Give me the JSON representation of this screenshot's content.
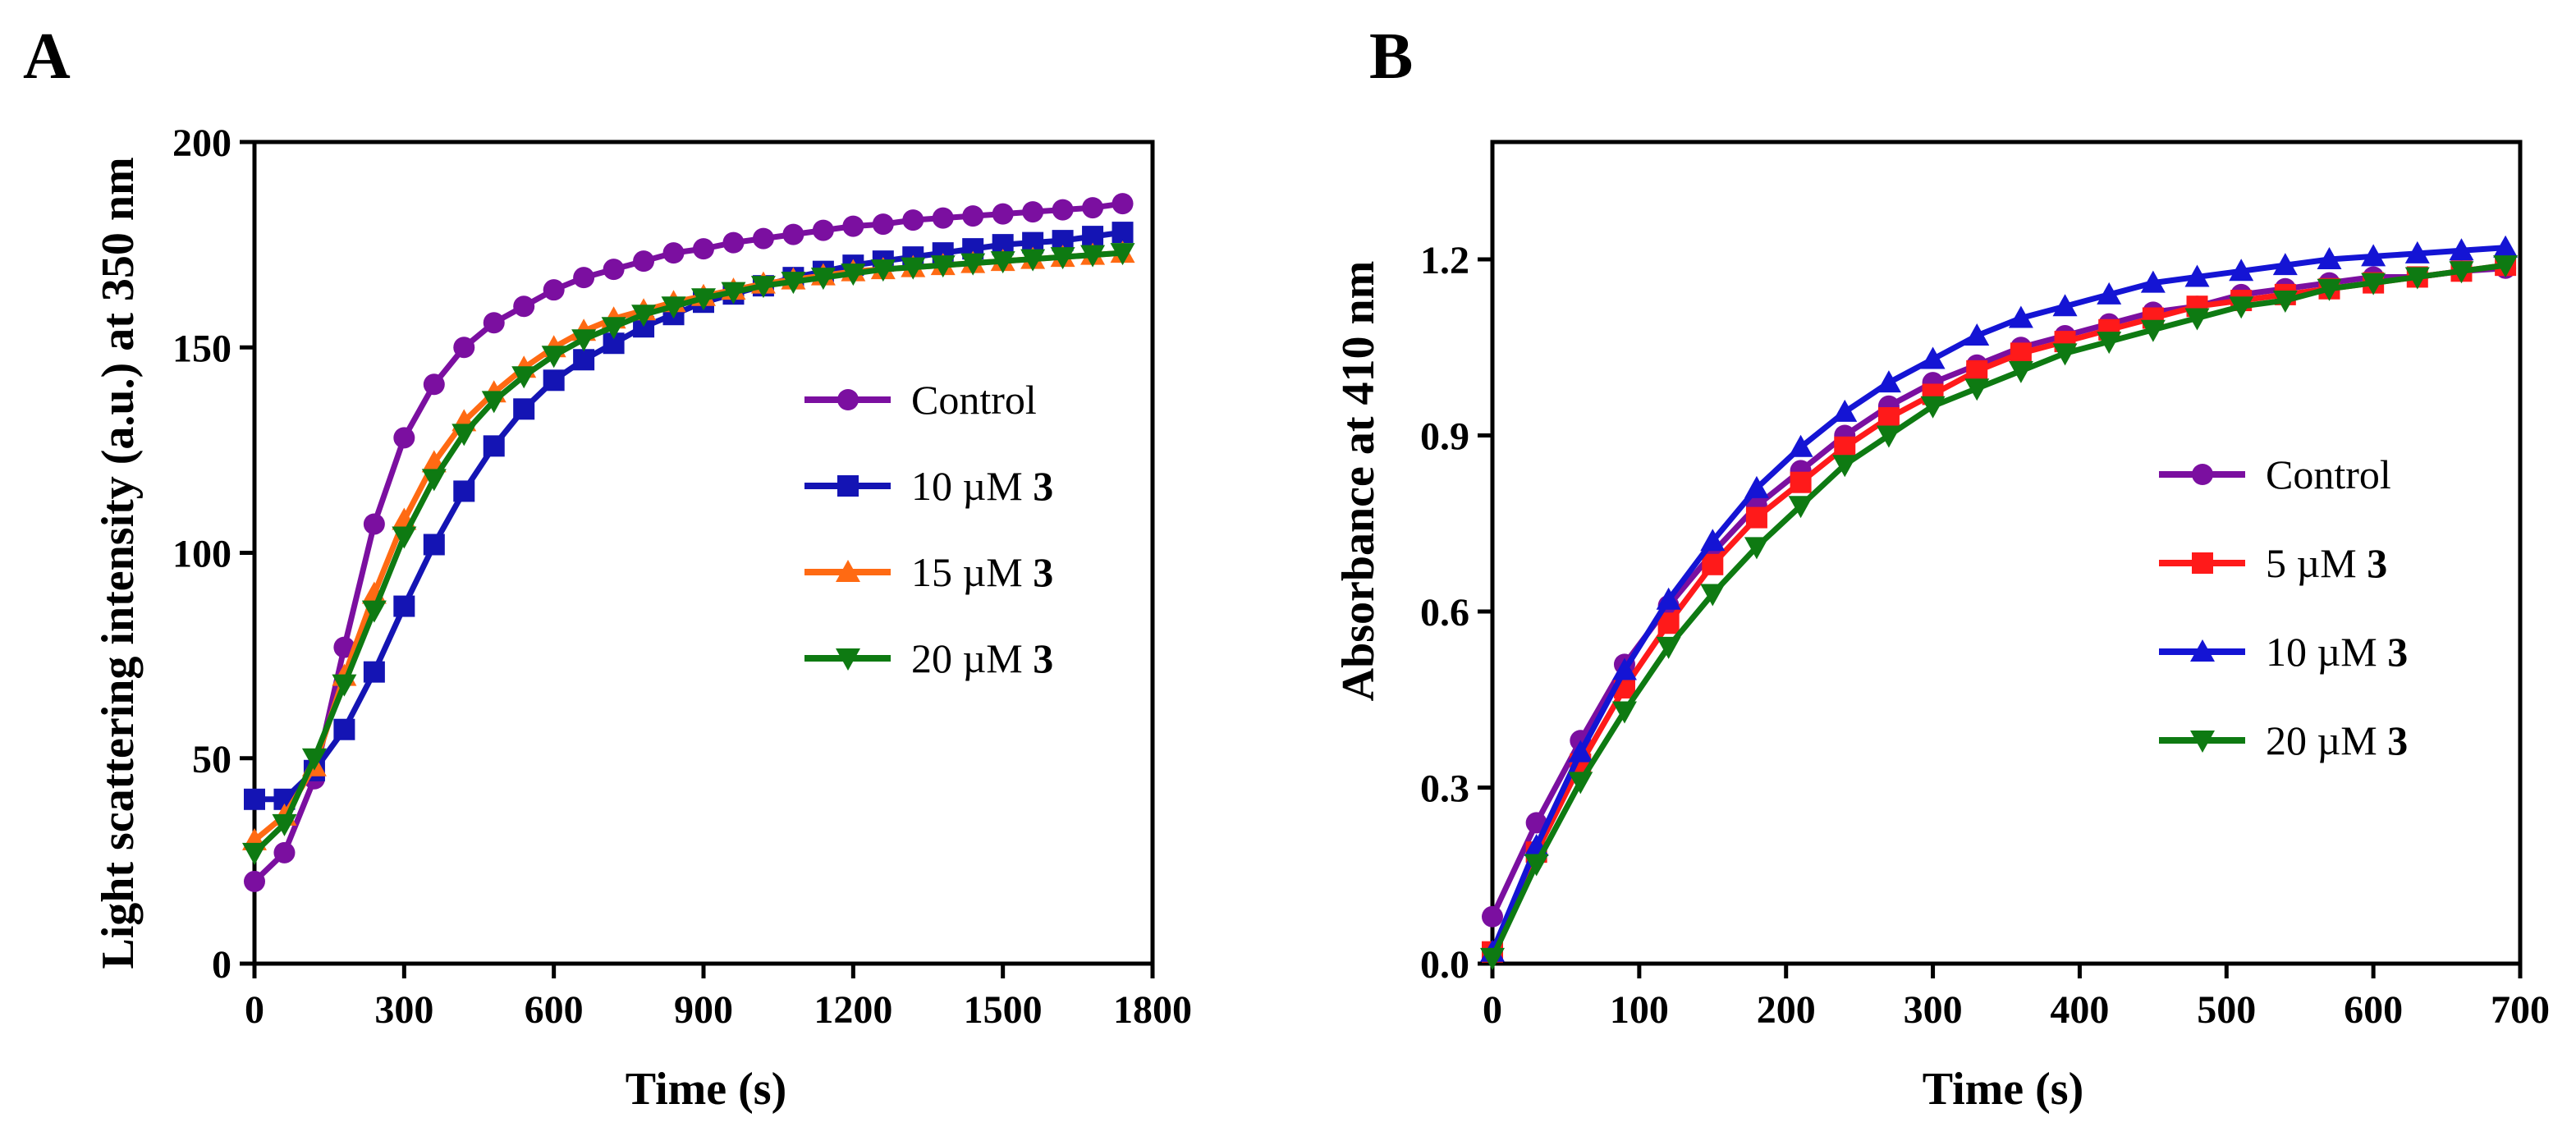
{
  "chart_data": [
    {
      "panel_label": "A",
      "type": "line",
      "xlabel": "Time (s)",
      "ylabel": "Light scattering intensity (a.u.) at 350 nm",
      "xlim": [
        0,
        1800
      ],
      "ylim": [
        0,
        200
      ],
      "xticks": [
        "0",
        "300",
        "600",
        "900",
        "1200",
        "1500",
        "1800"
      ],
      "yticks": [
        "0",
        "50",
        "100",
        "150",
        "200"
      ],
      "legend_position": "right",
      "x": [
        0,
        60,
        120,
        180,
        240,
        300,
        360,
        420,
        480,
        540,
        600,
        660,
        720,
        780,
        840,
        900,
        960,
        1020,
        1080,
        1140,
        1200,
        1260,
        1320,
        1380,
        1440,
        1500,
        1560,
        1620,
        1680,
        1740
      ],
      "series": [
        {
          "name": "Control",
          "label_prefix": "Control",
          "label_bold": "",
          "color": "#7B0FA0",
          "marker": "circle",
          "values": [
            20,
            27,
            45,
            77,
            107,
            128,
            141,
            150,
            156,
            160,
            164,
            167,
            169,
            171,
            173,
            174,
            175.5,
            176.5,
            177.5,
            178.5,
            179.5,
            180,
            181,
            181.5,
            182,
            182.5,
            183,
            183.5,
            184,
            185
          ]
        },
        {
          "name": "10 µM 3",
          "label_prefix": "10 µM ",
          "label_bold": "3",
          "color": "#1414B4",
          "marker": "square",
          "values": [
            40,
            40,
            47,
            57,
            71,
            87,
            102,
            115,
            126,
            135,
            142,
            147,
            151,
            155,
            158,
            161,
            163,
            165,
            167,
            168.5,
            170,
            171,
            172,
            173,
            174,
            175,
            175.5,
            176,
            177,
            178
          ]
        },
        {
          "name": "15 µM 3",
          "label_prefix": "15 µM ",
          "label_bold": "3",
          "color": "#FF6A13",
          "marker": "triangle-up",
          "values": [
            30,
            36,
            48,
            70,
            90,
            108,
            122,
            132,
            139,
            145,
            150,
            154,
            157,
            159,
            161,
            162.5,
            164,
            165.5,
            166.5,
            167.5,
            168.5,
            169,
            169.5,
            170,
            170.5,
            171,
            171.5,
            172,
            172.5,
            173
          ]
        },
        {
          "name": "20 µM 3",
          "label_prefix": "20 µM ",
          "label_bold": "3",
          "color": "#0E7A12",
          "marker": "triangle-down",
          "values": [
            27,
            34,
            50,
            68,
            86,
            104,
            118,
            129,
            137,
            143,
            148,
            152,
            155,
            158,
            160,
            162,
            163.5,
            165,
            166,
            167,
            168,
            169,
            169.5,
            170,
            170.5,
            171,
            171.5,
            172,
            172.5,
            173
          ]
        }
      ]
    },
    {
      "panel_label": "B",
      "type": "line",
      "xlabel": "Time (s)",
      "ylabel": "Absorbance at 410 nm",
      "xlim": [
        0,
        700
      ],
      "ylim": [
        0,
        1.4
      ],
      "xticks": [
        "0",
        "100",
        "200",
        "300",
        "400",
        "500",
        "600",
        "700"
      ],
      "yticks": [
        "0.0",
        "0.3",
        "0.6",
        "0.9",
        "1.2"
      ],
      "legend_position": "right",
      "x": [
        0,
        30,
        60,
        90,
        120,
        150,
        180,
        210,
        240,
        270,
        300,
        330,
        360,
        390,
        420,
        450,
        480,
        510,
        540,
        570,
        600,
        630,
        660,
        690
      ],
      "series": [
        {
          "name": "Control",
          "label_prefix": "Control",
          "label_bold": "",
          "color": "#7B0FA0",
          "marker": "circle",
          "values": [
            0.08,
            0.24,
            0.38,
            0.51,
            0.61,
            0.7,
            0.78,
            0.84,
            0.9,
            0.95,
            0.99,
            1.02,
            1.05,
            1.07,
            1.09,
            1.11,
            1.12,
            1.14,
            1.15,
            1.16,
            1.17,
            1.17,
            1.18,
            1.185
          ]
        },
        {
          "name": "5 µM 3",
          "label_prefix": "5 µM ",
          "label_bold": "3",
          "color": "#FF1A1A",
          "marker": "square",
          "values": [
            0.02,
            0.19,
            0.34,
            0.47,
            0.58,
            0.68,
            0.76,
            0.82,
            0.88,
            0.93,
            0.97,
            1.01,
            1.04,
            1.06,
            1.08,
            1.1,
            1.12,
            1.13,
            1.14,
            1.15,
            1.16,
            1.17,
            1.18,
            1.19
          ]
        },
        {
          "name": "10 µM 3",
          "label_prefix": "10 µM ",
          "label_bold": "3",
          "color": "#1414D4",
          "marker": "triangle-up",
          "values": [
            0.02,
            0.2,
            0.36,
            0.5,
            0.62,
            0.72,
            0.81,
            0.88,
            0.94,
            0.99,
            1.03,
            1.07,
            1.1,
            1.12,
            1.14,
            1.16,
            1.17,
            1.18,
            1.19,
            1.2,
            1.205,
            1.21,
            1.215,
            1.22
          ]
        },
        {
          "name": "20 µM 3",
          "label_prefix": "20 µM ",
          "label_bold": "3",
          "color": "#0E7A12",
          "marker": "triangle-down",
          "values": [
            0.01,
            0.17,
            0.31,
            0.43,
            0.54,
            0.63,
            0.71,
            0.78,
            0.85,
            0.9,
            0.95,
            0.98,
            1.01,
            1.04,
            1.06,
            1.08,
            1.1,
            1.12,
            1.13,
            1.15,
            1.16,
            1.17,
            1.18,
            1.19
          ]
        }
      ]
    }
  ]
}
